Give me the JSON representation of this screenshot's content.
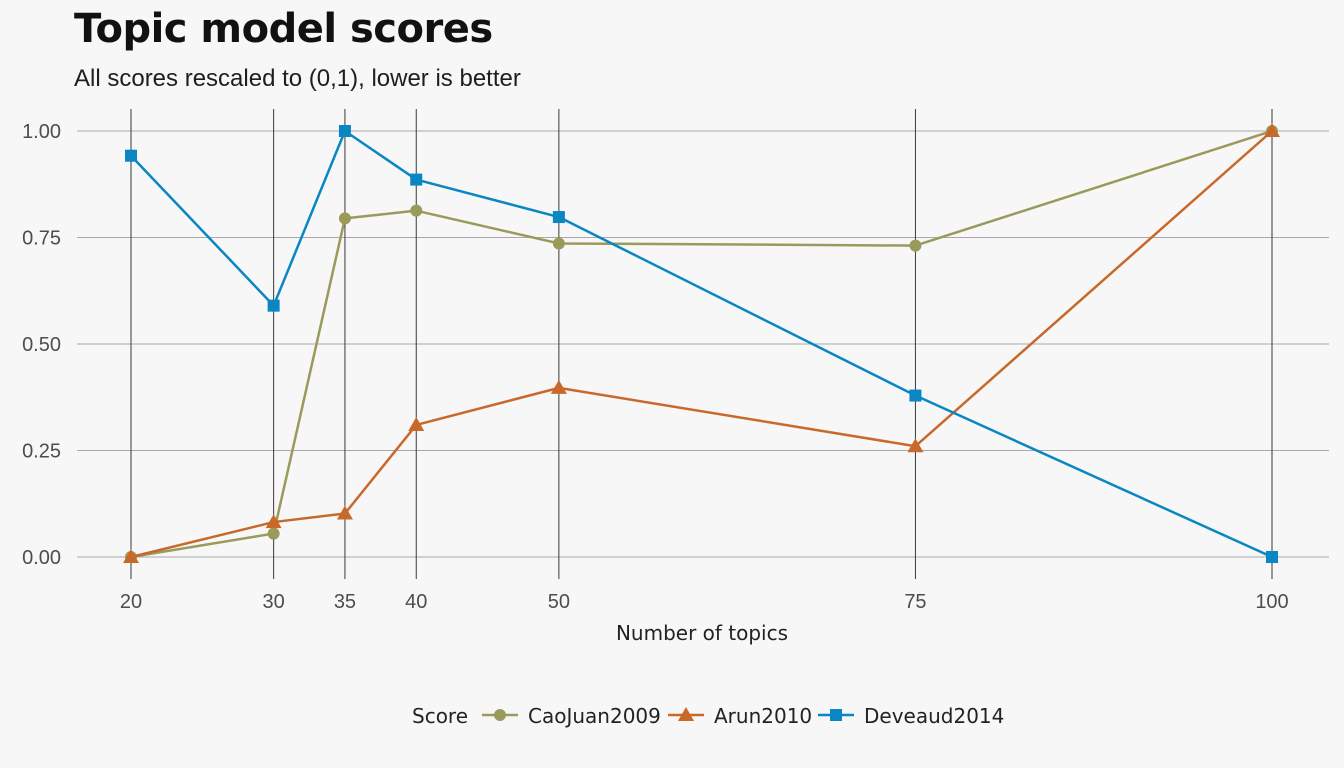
{
  "chart_data": {
    "type": "line",
    "title": "Topic model scores",
    "subtitle": "All scores rescaled to (0,1), lower is better",
    "xlabel": "Number of topics",
    "ylabel": "",
    "x": [
      20,
      30,
      35,
      40,
      50,
      75,
      100
    ],
    "x_ticks": [
      "20",
      "30",
      "35",
      "40",
      "50",
      "75",
      "100"
    ],
    "y_ticks": [
      "0.00",
      "0.25",
      "0.50",
      "0.75",
      "1.00"
    ],
    "ylim": [
      0,
      1
    ],
    "grid": true,
    "legend_title": "Score",
    "legend_position": "bottom",
    "series": [
      {
        "name": "CaoJuan2009",
        "color": "#9a9a5b",
        "marker": "circle",
        "values": [
          0.0,
          0.055,
          0.795,
          0.813,
          0.736,
          0.731,
          1.0
        ]
      },
      {
        "name": "Arun2010",
        "color": "#c8692b",
        "marker": "triangle",
        "values": [
          0.0,
          0.082,
          0.102,
          0.31,
          0.397,
          0.26,
          1.0
        ]
      },
      {
        "name": "Deveaud2014",
        "color": "#0a86c2",
        "marker": "square",
        "values": [
          0.942,
          0.59,
          1.0,
          0.886,
          0.798,
          0.379,
          0.0
        ]
      }
    ]
  }
}
